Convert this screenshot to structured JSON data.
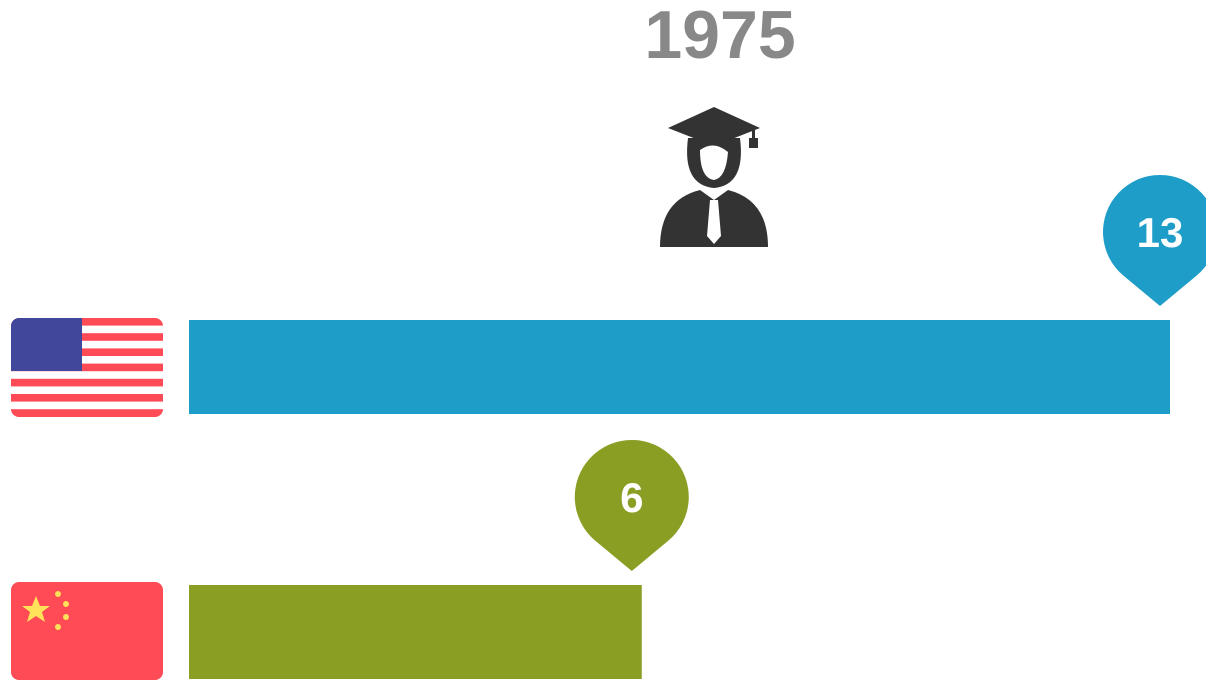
{
  "chart_data": {
    "type": "hbar",
    "title": "1975",
    "values": [
      13,
      6
    ],
    "colors": [
      "#1f9dc9",
      "#8a9e24"
    ]
  }
}
